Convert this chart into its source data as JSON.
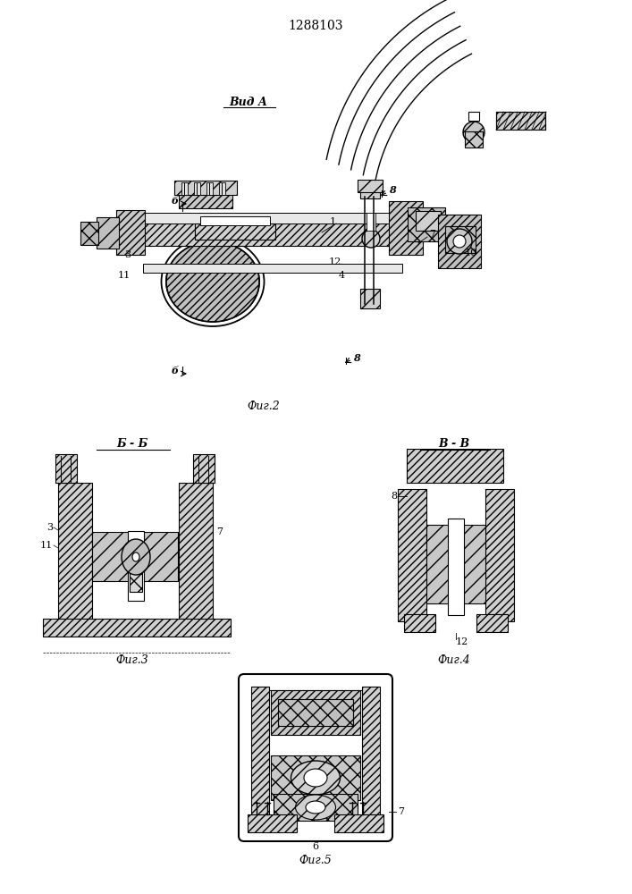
{
  "title": "1288103",
  "background_color": "#ffffff",
  "line_color": "#000000",
  "fig2_label": "Фиг.2",
  "fig3_label": "Фиг.3",
  "fig4_label": "Фиг.4",
  "fig5_label": "Фиг.5",
  "vid_a_label": "Вид А",
  "bb_label": "Б - Б",
  "vv_label": "В - В"
}
